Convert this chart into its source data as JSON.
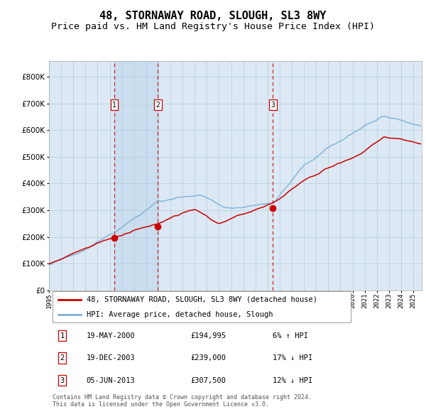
{
  "title": "48, STORNAWAY ROAD, SLOUGH, SL3 8WY",
  "subtitle": "Price paid vs. HM Land Registry's House Price Index (HPI)",
  "title_fontsize": 11,
  "subtitle_fontsize": 9.5,
  "background_color": "#ffffff",
  "plot_bg_color": "#dce9f5",
  "ytick_values": [
    0,
    100000,
    200000,
    300000,
    400000,
    500000,
    600000,
    700000,
    800000
  ],
  "ylim": [
    0,
    860000
  ],
  "xlim_start": 1995.0,
  "xlim_end": 2025.7,
  "sale_dates": [
    2000.38,
    2003.97,
    2013.43
  ],
  "sale_prices": [
    194995,
    239000,
    307500
  ],
  "sale_labels": [
    "1",
    "2",
    "3"
  ],
  "vline_dates": [
    2000.38,
    2003.97,
    2013.43
  ],
  "shade_regions": [
    [
      2000.38,
      2003.97
    ]
  ],
  "legend_entries": [
    "48, STORNAWAY ROAD, SLOUGH, SL3 8WY (detached house)",
    "HPI: Average price, detached house, Slough"
  ],
  "table_rows": [
    [
      "1",
      "19-MAY-2000",
      "£194,995",
      "6% ↑ HPI"
    ],
    [
      "2",
      "19-DEC-2003",
      "£239,000",
      "17% ↓ HPI"
    ],
    [
      "3",
      "05-JUN-2013",
      "£307,500",
      "12% ↓ HPI"
    ]
  ],
  "footer_text": "Contains HM Land Registry data © Crown copyright and database right 2024.\nThis data is licensed under the Open Government Licence v3.0.",
  "hpi_color": "#7bafd4",
  "price_color": "#cc0000",
  "marker_color": "#cc0000",
  "vline_color": "#cc0000",
  "grid_color": "#b8cfe0",
  "table_box_color": "#cc0000"
}
